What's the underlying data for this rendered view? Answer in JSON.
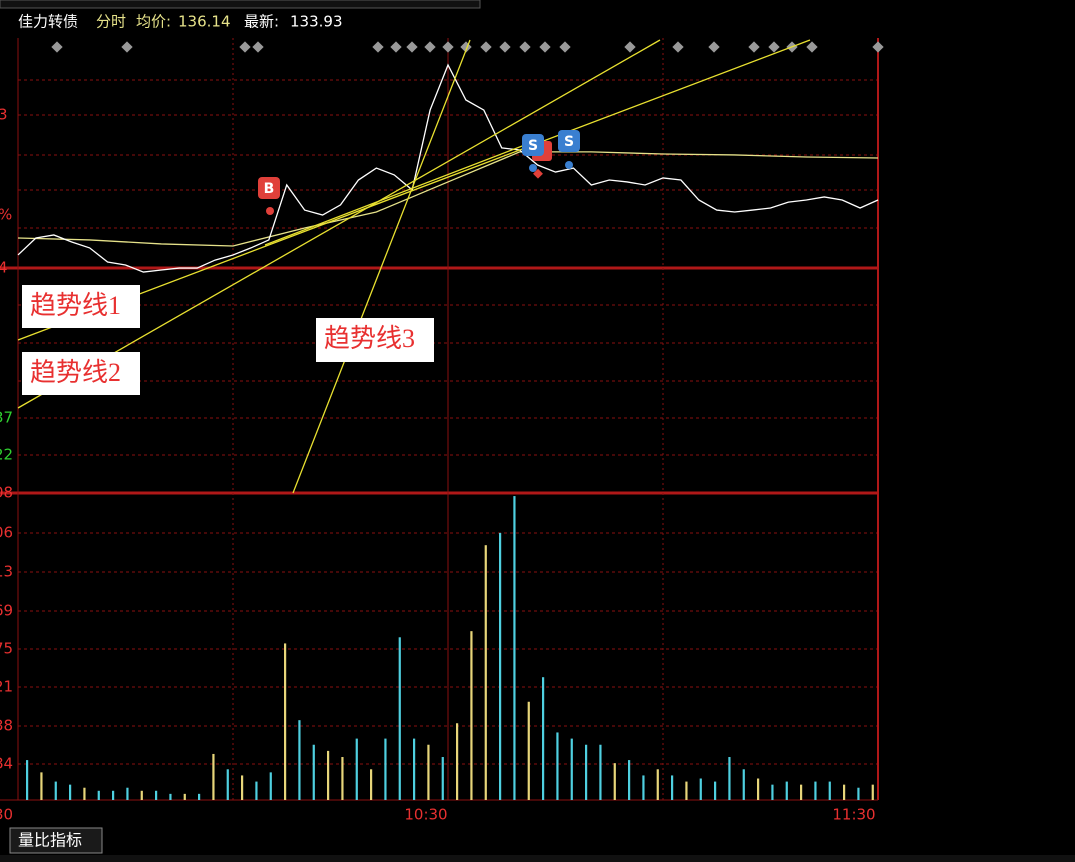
{
  "header": {
    "name": "佳力转债",
    "mode": "分时",
    "avg_label": "均价:",
    "avg": "136.14",
    "latest_label": "最新:",
    "latest": "133.93"
  },
  "left_labels": [
    "3",
    "%",
    "4",
    "37",
    "22",
    "08",
    "06",
    "13",
    "69",
    "75",
    "21",
    "38",
    "84"
  ],
  "time_labels": [
    "30",
    "10:30",
    "11:30"
  ],
  "annotations": [
    "趋势线1",
    "趋势线2",
    "趋势线3"
  ],
  "markers": [
    {
      "label": "B"
    },
    {
      "label": "S"
    },
    {
      "label": "S"
    }
  ],
  "bottom_tab": "量比指标",
  "price": {
    "color": "#ffffff",
    "ylim": [
      118.52,
      142.45
    ],
    "values": [
      131.04,
      131.93,
      132.09,
      131.72,
      131.41,
      130.67,
      130.51,
      130.14,
      130.25,
      130.35,
      130.35,
      130.77,
      131.04,
      131.41,
      131.83,
      134.72,
      133.4,
      133.14,
      133.67,
      134.98,
      135.61,
      135.25,
      134.46,
      138.66,
      141.03,
      139.19,
      138.66,
      136.67,
      136.56,
      135.77,
      135.4,
      135.61,
      134.72,
      134.98,
      134.88,
      134.72,
      135.09,
      134.98,
      133.93,
      133.4,
      133.3,
      133.4,
      133.51,
      133.82,
      133.93,
      134.09,
      133.93,
      133.51,
      133.93
    ]
  },
  "average": {
    "color": "#e6e28a",
    "values": [
      131.93,
      131.83,
      131.62,
      131.51,
      132.46,
      133.3,
      134.88,
      136.46,
      136.46,
      136.35,
      136.3,
      136.19,
      136.14
    ]
  },
  "volume": {
    "ylim": [
      0,
      100
    ],
    "values": [
      13,
      9,
      6,
      5,
      4,
      3,
      3,
      4,
      3,
      3,
      2,
      2,
      2,
      15,
      10,
      8,
      6,
      9,
      51,
      26,
      18,
      16,
      14,
      20,
      10,
      20,
      53,
      20,
      18,
      14,
      25,
      55,
      83,
      87,
      99,
      32,
      40,
      22,
      20,
      18,
      18,
      12,
      13,
      8,
      10,
      8,
      6,
      7,
      6,
      14,
      10,
      7,
      5,
      6,
      5,
      6,
      6,
      5,
      4,
      5
    ],
    "colors": [
      "#4fd0e0",
      "#e8d67a",
      "#4fd0e0",
      "#4fd0e0",
      "#e8d67a",
      "#4fd0e0",
      "#4fd0e0",
      "#4fd0e0",
      "#e8d67a",
      "#4fd0e0",
      "#4fd0e0",
      "#e8d67a",
      "#4fd0e0",
      "#e8d67a",
      "#4fd0e0",
      "#e8d67a",
      "#4fd0e0",
      "#4fd0e0",
      "#e8d67a",
      "#4fd0e0",
      "#4fd0e0",
      "#e8d67a",
      "#e8d67a",
      "#4fd0e0",
      "#e8d67a",
      "#4fd0e0",
      "#4fd0e0",
      "#4fd0e0",
      "#e8d67a",
      "#4fd0e0",
      "#e8d67a",
      "#e8d67a",
      "#e8d67a",
      "#4fd0e0",
      "#4fd0e0",
      "#e8d67a",
      "#4fd0e0",
      "#4fd0e0",
      "#4fd0e0",
      "#4fd0e0",
      "#4fd0e0",
      "#e8d67a",
      "#4fd0e0",
      "#4fd0e0",
      "#e8d67a",
      "#4fd0e0",
      "#e8d67a",
      "#4fd0e0",
      "#4fd0e0",
      "#4fd0e0",
      "#4fd0e0",
      "#e8d67a",
      "#4fd0e0",
      "#4fd0e0",
      "#e8d67a",
      "#4fd0e0",
      "#4fd0e0",
      "#e8d67a",
      "#4fd0e0",
      "#e8d67a"
    ]
  }
}
